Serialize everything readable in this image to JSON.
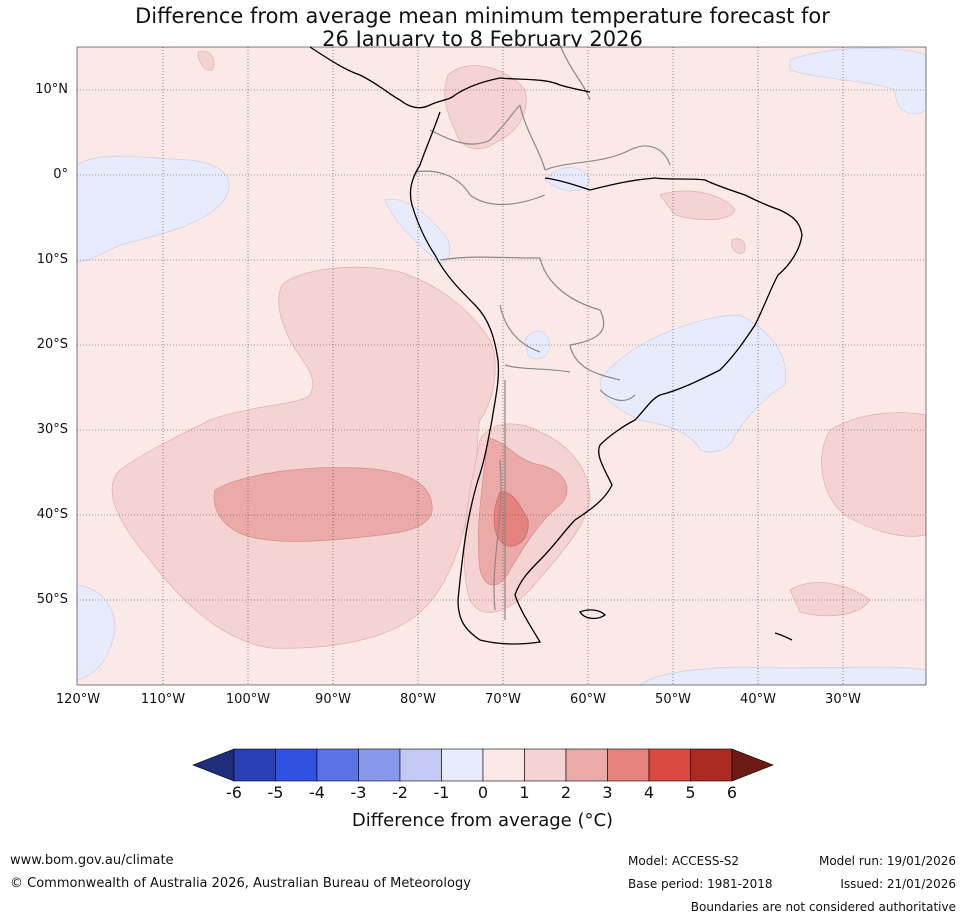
{
  "title": {
    "line1": "Difference from average mean minimum temperature forecast for",
    "line2": "26 January to 8 February 2026"
  },
  "map": {
    "lat_labels": [
      "10°N",
      "0°",
      "10°S",
      "20°S",
      "30°S",
      "40°S",
      "50°S"
    ],
    "lon_labels": [
      "120°W",
      "110°W",
      "100°W",
      "90°W",
      "80°W",
      "70°W",
      "60°W",
      "50°W",
      "40°W",
      "30°W"
    ]
  },
  "colorbar": {
    "ticks": [
      "-6",
      "-5",
      "-4",
      "-3",
      "-2",
      "-1",
      "0",
      "1",
      "2",
      "3",
      "4",
      "5",
      "6"
    ],
    "colors": [
      "#1f2d7a",
      "#2a40b6",
      "#3152e0",
      "#5c73e6",
      "#8797ec",
      "#c2c9f4",
      "#e8ebfb",
      "#fbe9e8",
      "#f4d3d2",
      "#ebaaa7",
      "#e5827d",
      "#db4a3e",
      "#ab2a21",
      "#6b1a14"
    ],
    "title": "Difference from average (°C)"
  },
  "footer": {
    "website": "www.bom.gov.au/climate",
    "copyright": "© Commonwealth of Australia 2026, Australian Bureau of Meteorology",
    "model": "Model: ACCESS-S2",
    "base_period": "Base period: 1981-2018",
    "model_run": "Model run: 19/01/2026",
    "issued": "Issued: 21/01/2026",
    "disclaimer": "Boundaries are not considered authoritative"
  }
}
